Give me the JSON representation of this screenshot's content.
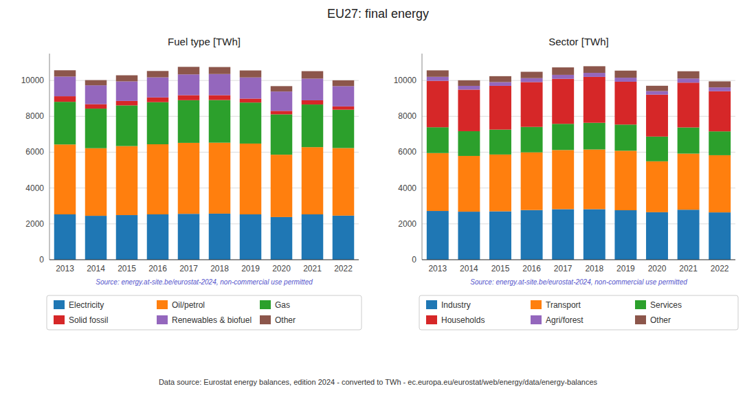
{
  "title": "EU27: final energy",
  "annotations": [
    "Data source: Eurostat energy balances, edition 2024 - converted to TWh - ec.europa.eu/eurostat/web/energy/data/energy-balances"
  ],
  "chart_data": [
    {
      "type": "bar",
      "stacked": true,
      "title": "Fuel type [TWh]",
      "categories": [
        2013,
        2014,
        2015,
        2016,
        2017,
        2018,
        2019,
        2020,
        2021,
        2022
      ],
      "series": [
        {
          "name": "Electricity",
          "color": "#1f77b4",
          "values": [
            2530,
            2450,
            2490,
            2530,
            2560,
            2570,
            2530,
            2380,
            2530,
            2460
          ]
        },
        {
          "name": "Oil/petrol",
          "color": "#ff7f0e",
          "values": [
            3900,
            3770,
            3850,
            3910,
            3960,
            3960,
            3950,
            3480,
            3750,
            3770
          ]
        },
        {
          "name": "Gas",
          "color": "#2ca02c",
          "values": [
            2380,
            2210,
            2270,
            2350,
            2380,
            2380,
            2290,
            2250,
            2380,
            2140
          ]
        },
        {
          "name": "Solid fossil",
          "color": "#d62728",
          "values": [
            310,
            250,
            250,
            265,
            280,
            270,
            220,
            195,
            235,
            185
          ]
        },
        {
          "name": "Renewables & biofuel",
          "color": "#9467bd",
          "values": [
            1100,
            1050,
            1090,
            1120,
            1160,
            1180,
            1180,
            1080,
            1210,
            1130
          ]
        },
        {
          "name": "Other",
          "color": "#8c564b",
          "values": [
            350,
            290,
            340,
            355,
            420,
            390,
            390,
            300,
            415,
            325
          ]
        }
      ],
      "ylim": [
        0,
        11500
      ],
      "yticks": [
        0,
        2000,
        4000,
        6000,
        8000,
        10000
      ],
      "grid": true,
      "legend": "bottom",
      "annotations": [
        "Source: energy.at-site.be/eurostat-2024, non-commercial use permitted"
      ]
    },
    {
      "type": "bar",
      "stacked": true,
      "title": "Sector [TWh]",
      "categories": [
        2013,
        2014,
        2015,
        2016,
        2017,
        2018,
        2019,
        2020,
        2021,
        2022
      ],
      "series": [
        {
          "name": "Industry",
          "color": "#1f77b4",
          "values": [
            2720,
            2680,
            2700,
            2770,
            2820,
            2820,
            2760,
            2650,
            2790,
            2640
          ]
        },
        {
          "name": "Transport",
          "color": "#ff7f0e",
          "values": [
            3230,
            3110,
            3170,
            3220,
            3300,
            3330,
            3320,
            2840,
            3130,
            3190
          ]
        },
        {
          "name": "Services",
          "color": "#2ca02c",
          "values": [
            1440,
            1380,
            1390,
            1420,
            1460,
            1490,
            1460,
            1380,
            1460,
            1330
          ]
        },
        {
          "name": "Households",
          "color": "#d62728",
          "values": [
            2590,
            2320,
            2440,
            2500,
            2510,
            2560,
            2390,
            2340,
            2500,
            2240
          ]
        },
        {
          "name": "Agri/forest",
          "color": "#9467bd",
          "values": [
            225,
            210,
            210,
            220,
            225,
            225,
            225,
            200,
            230,
            215
          ]
        },
        {
          "name": "Other",
          "color": "#8c564b",
          "values": [
            360,
            310,
            330,
            355,
            415,
            370,
            395,
            295,
            405,
            335
          ]
        }
      ],
      "ylim": [
        0,
        11500
      ],
      "yticks": [
        0,
        2000,
        4000,
        6000,
        8000,
        10000
      ],
      "grid": true,
      "legend": "bottom",
      "annotations": [
        "Source: energy.at-site.be/eurostat-2024, non-commercial use permitted"
      ]
    }
  ]
}
